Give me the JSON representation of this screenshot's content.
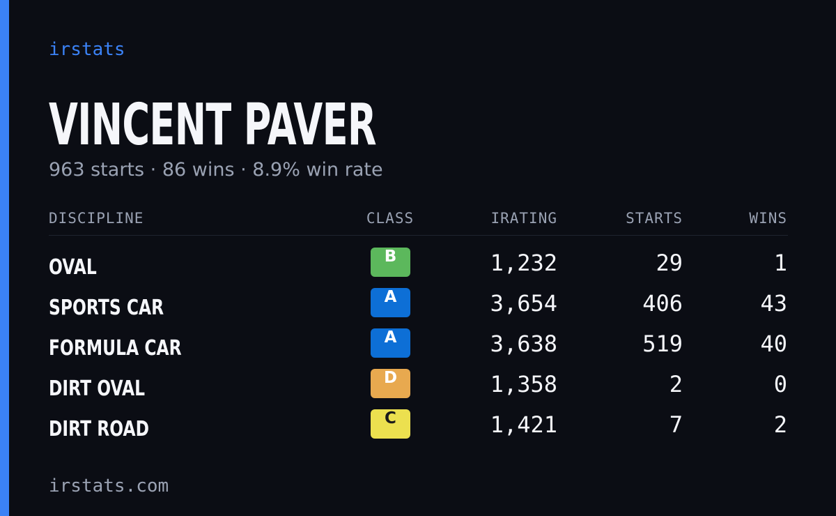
{
  "brand": "irstats",
  "name": "VINCENT PAVER",
  "subtitle": "963 starts · 86 wins · 8.9% win rate",
  "table": {
    "headers": [
      "DISCIPLINE",
      "CLASS",
      "IRATING",
      "STARTS",
      "WINS"
    ],
    "rows": [
      {
        "discipline": "OVAL",
        "class": "B",
        "class_color": "#5cb85c",
        "irating": "1,232",
        "starts": 29,
        "wins": 1
      },
      {
        "discipline": "SPORTS CAR",
        "class": "A",
        "class_color": "#0d6fd6",
        "irating": "3,654",
        "starts": 406,
        "wins": 43
      },
      {
        "discipline": "FORMULA CAR",
        "class": "A",
        "class_color": "#0d6fd6",
        "irating": "3,638",
        "starts": 519,
        "wins": 40
      },
      {
        "discipline": "DIRT OVAL",
        "class": "D",
        "class_color": "#e8a94f",
        "irating": "1,358",
        "starts": 2,
        "wins": 0
      },
      {
        "discipline": "DIRT ROAD",
        "class": "C",
        "class_color": "#ece04f",
        "irating": "1,421",
        "starts": 7,
        "wins": 2
      }
    ]
  },
  "footer": "irstats.com"
}
